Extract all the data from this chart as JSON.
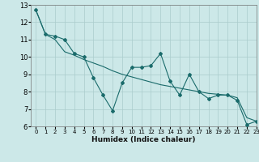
{
  "title": "",
  "xlabel": "Humidex (Indice chaleur)",
  "bg_color": "#cce8e8",
  "grid_color": "#aacccc",
  "line_color": "#1a6b6b",
  "xlim": [
    -0.5,
    23
  ],
  "ylim": [
    6,
    13
  ],
  "xticks": [
    0,
    1,
    2,
    3,
    4,
    5,
    6,
    7,
    8,
    9,
    10,
    11,
    12,
    13,
    14,
    15,
    16,
    17,
    18,
    19,
    20,
    21,
    22,
    23
  ],
  "yticks": [
    6,
    7,
    8,
    9,
    10,
    11,
    12,
    13
  ],
  "series1_x": [
    0,
    1,
    2,
    3,
    4,
    5,
    6,
    7,
    8,
    9,
    10,
    11,
    12,
    13,
    14,
    15,
    16,
    17,
    18,
    19,
    20,
    21,
    22,
    23
  ],
  "series1_y": [
    12.7,
    11.3,
    11.2,
    11.0,
    10.2,
    10.0,
    8.8,
    7.8,
    6.9,
    8.5,
    9.4,
    9.4,
    9.5,
    10.2,
    8.6,
    7.8,
    9.0,
    8.0,
    7.6,
    7.8,
    7.8,
    7.5,
    6.1,
    6.3
  ],
  "series2_x": [
    0,
    1,
    2,
    3,
    4,
    5,
    6,
    7,
    8,
    9,
    10,
    11,
    12,
    13,
    14,
    15,
    16,
    17,
    18,
    19,
    20,
    21,
    22,
    23
  ],
  "series2_y": [
    12.7,
    11.3,
    11.0,
    10.3,
    10.1,
    9.85,
    9.65,
    9.45,
    9.2,
    9.0,
    8.85,
    8.7,
    8.55,
    8.4,
    8.3,
    8.2,
    8.1,
    8.0,
    7.9,
    7.85,
    7.8,
    7.65,
    6.5,
    6.3
  ]
}
